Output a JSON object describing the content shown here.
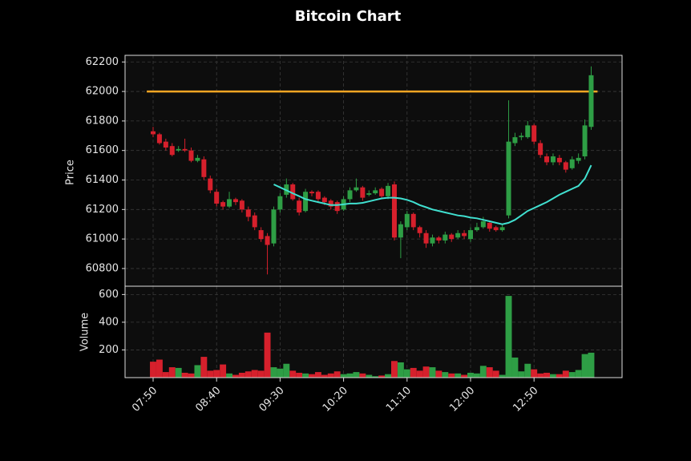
{
  "chart_data": {
    "type": "candlestick",
    "title": "Bitcoin Chart",
    "ylabel": "Price",
    "volume_label": "Volume",
    "categories": [
      "07:50",
      "07:55",
      "08:00",
      "08:05",
      "08:10",
      "08:15",
      "08:20",
      "08:25",
      "08:30",
      "08:35",
      "08:40",
      "08:45",
      "08:50",
      "08:55",
      "09:00",
      "09:05",
      "09:10",
      "09:15",
      "09:20",
      "09:25",
      "09:30",
      "09:35",
      "09:40",
      "09:45",
      "09:50",
      "09:55",
      "10:00",
      "10:05",
      "10:10",
      "10:15",
      "10:20",
      "10:25",
      "10:30",
      "10:35",
      "10:40",
      "10:45",
      "10:50",
      "10:55",
      "11:00",
      "11:05",
      "11:10",
      "11:15",
      "11:20",
      "11:25",
      "11:30",
      "11:35",
      "11:40",
      "11:45",
      "11:50",
      "11:55",
      "12:00",
      "12:05",
      "12:10",
      "12:15",
      "12:20",
      "12:25",
      "12:30",
      "12:35",
      "12:40",
      "12:45",
      "12:50",
      "12:55",
      "13:00",
      "13:05",
      "13:10",
      "13:15",
      "13:20",
      "13:25",
      "13:30",
      "13:35"
    ],
    "open": [
      61730,
      61710,
      61660,
      61630,
      61600,
      61610,
      61600,
      61530,
      61540,
      61410,
      61320,
      61250,
      61220,
      61270,
      61260,
      61200,
      61160,
      61060,
      61020,
      60970,
      61200,
      61300,
      61370,
      61260,
      61190,
      61320,
      61320,
      61280,
      61260,
      61250,
      61200,
      61270,
      61330,
      61350,
      61300,
      61310,
      61340,
      61290,
      61370,
      61010,
      61080,
      61170,
      61080,
      61040,
      60970,
      61010,
      60990,
      61030,
      61010,
      61040,
      61000,
      61060,
      61080,
      61110,
      61080,
      61060,
      61160,
      61650,
      61690,
      61690,
      61770,
      61650,
      61560,
      61520,
      61550,
      61520,
      61480,
      61530,
      61560,
      61760
    ],
    "high": [
      61760,
      61720,
      61680,
      61650,
      61630,
      61680,
      61620,
      61570,
      61560,
      61430,
      61340,
      61260,
      61320,
      61280,
      61270,
      61220,
      61180,
      61080,
      61040,
      61220,
      61310,
      61410,
      61380,
      61280,
      61340,
      61330,
      61330,
      61290,
      61270,
      61260,
      61290,
      61350,
      61410,
      61360,
      61330,
      61350,
      61350,
      61380,
      61390,
      61120,
      61190,
      61180,
      61090,
      61060,
      61030,
      61020,
      61050,
      61040,
      61060,
      61060,
      61080,
      61110,
      61150,
      61120,
      61090,
      61100,
      61940,
      61720,
      61720,
      61800,
      61780,
      61670,
      61580,
      61580,
      61570,
      61530,
      61560,
      61580,
      61810,
      62170
    ],
    "low": [
      61690,
      61640,
      61600,
      61560,
      61590,
      61590,
      61520,
      61520,
      61400,
      61310,
      61220,
      61200,
      61210,
      61230,
      61180,
      61120,
      61060,
      60980,
      60760,
      60950,
      61180,
      61280,
      61260,
      61160,
      61180,
      61290,
      61250,
      61230,
      61200,
      61170,
      61190,
      61250,
      61320,
      61260,
      61290,
      61300,
      61270,
      61270,
      60990,
      60870,
      61060,
      61060,
      61010,
      60940,
      60950,
      60970,
      60970,
      60980,
      61000,
      61000,
      60980,
      61050,
      61070,
      61050,
      61050,
      61050,
      61140,
      61630,
      61670,
      61680,
      61640,
      61550,
      61500,
      61500,
      61500,
      61450,
      61470,
      61510,
      61540,
      61740
    ],
    "close": [
      61710,
      61650,
      61620,
      61570,
      61610,
      61600,
      61530,
      61550,
      61420,
      61330,
      61240,
      61220,
      61270,
      61250,
      61200,
      61150,
      61080,
      61000,
      60960,
      61200,
      61290,
      61370,
      61270,
      61180,
      61320,
      61310,
      61270,
      61250,
      61220,
      61190,
      61270,
      61330,
      61350,
      61280,
      61310,
      61330,
      61290,
      61360,
      61010,
      61100,
      61170,
      61080,
      61040,
      60970,
      61010,
      60990,
      61030,
      61000,
      61040,
      61020,
      61060,
      61080,
      61120,
      61070,
      61060,
      61080,
      61660,
      61690,
      61700,
      61770,
      61660,
      61570,
      61520,
      61560,
      61520,
      61470,
      61540,
      61550,
      61770,
      62110
    ],
    "volume": [
      115,
      130,
      40,
      75,
      70,
      35,
      30,
      90,
      150,
      50,
      55,
      95,
      30,
      20,
      35,
      45,
      55,
      50,
      325,
      75,
      65,
      100,
      50,
      35,
      30,
      25,
      40,
      20,
      30,
      45,
      25,
      30,
      40,
      30,
      20,
      10,
      15,
      25,
      120,
      110,
      60,
      70,
      50,
      80,
      75,
      50,
      40,
      30,
      30,
      20,
      35,
      30,
      85,
      75,
      50,
      20,
      590,
      145,
      45,
      100,
      60,
      30,
      35,
      25,
      25,
      50,
      40,
      55,
      170,
      180
    ],
    "moving_average": {
      "color": "#40e0d0",
      "values": [
        null,
        null,
        null,
        null,
        null,
        null,
        null,
        null,
        null,
        null,
        null,
        null,
        null,
        null,
        null,
        null,
        null,
        null,
        null,
        61370,
        61350,
        61330,
        61310,
        61290,
        61270,
        61260,
        61250,
        61240,
        61230,
        61230,
        61235,
        61240,
        61240,
        61245,
        61255,
        61265,
        61275,
        61280,
        61280,
        61275,
        61265,
        61250,
        61230,
        61215,
        61200,
        61190,
        61180,
        61170,
        61160,
        61155,
        61145,
        61140,
        61130,
        61120,
        61110,
        61100,
        61110,
        61130,
        61160,
        61190,
        61210,
        61230,
        61250,
        61275,
        61300,
        61320,
        61340,
        61360,
        61410,
        61500
      ]
    },
    "hline": {
      "value": 62000,
      "color": "#f5a623"
    },
    "up_color": "#2e9e45",
    "down_color": "#d6202c",
    "ylim": [
      60680,
      62245
    ],
    "yticks": [
      60800,
      61000,
      61200,
      61400,
      61600,
      61800,
      62000,
      62200
    ],
    "volume_ylim": [
      0,
      660
    ],
    "volume_yticks": [
      200,
      400,
      600
    ],
    "xticks": [
      "07:50",
      "08:40",
      "09:30",
      "10:20",
      "11:10",
      "12:00",
      "12:50"
    ],
    "grid": true
  }
}
